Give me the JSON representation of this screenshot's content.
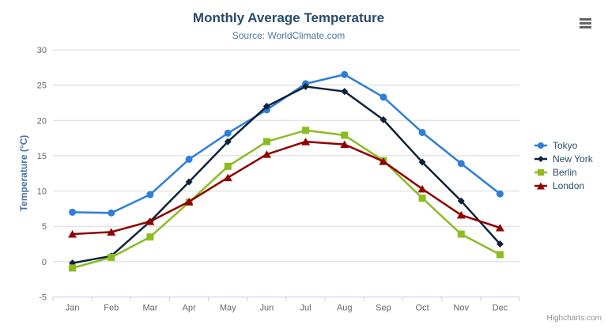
{
  "credits": "Highcharts.com",
  "chart_data": {
    "type": "line",
    "title": "Monthly Average Temperature",
    "subtitle": "Source: WorldClimate.com",
    "xlabel": "",
    "ylabel": "Temperature (°C)",
    "categories": [
      "Jan",
      "Feb",
      "Mar",
      "Apr",
      "May",
      "Jun",
      "Jul",
      "Aug",
      "Sep",
      "Oct",
      "Nov",
      "Dec"
    ],
    "series": [
      {
        "name": "Tokyo",
        "color": "#2f7ed8",
        "marker": "circle",
        "values": [
          7.0,
          6.9,
          9.5,
          14.5,
          18.2,
          21.5,
          25.2,
          26.5,
          23.3,
          18.3,
          13.9,
          9.6
        ]
      },
      {
        "name": "New York",
        "color": "#0d233a",
        "marker": "diamond",
        "values": [
          -0.2,
          0.8,
          5.7,
          11.3,
          17.0,
          22.0,
          24.8,
          24.1,
          20.1,
          14.1,
          8.6,
          2.5
        ]
      },
      {
        "name": "Berlin",
        "color": "#8bbc21",
        "marker": "square",
        "values": [
          -0.9,
          0.6,
          3.5,
          8.4,
          13.5,
          17.0,
          18.6,
          17.9,
          14.3,
          9.0,
          3.9,
          1.0
        ]
      },
      {
        "name": "London",
        "color": "#910000",
        "marker": "triangle",
        "values": [
          3.9,
          4.2,
          5.7,
          8.5,
          11.9,
          15.2,
          17.0,
          16.6,
          14.2,
          10.3,
          6.6,
          4.8
        ]
      }
    ],
    "ylim": [
      -5,
      30
    ],
    "y_tick_interval": 5,
    "grid": true,
    "legend_position": "right",
    "colors": {
      "grid_line": "#d8d8d8",
      "axis_line": "#c0d0e0",
      "axis_label": "#666666",
      "title": "#274b6d",
      "subtitle": "#4d759e",
      "y_axis_title": "#4572a7",
      "legend_text": "#274b6d",
      "credits_text": "#909090"
    }
  }
}
